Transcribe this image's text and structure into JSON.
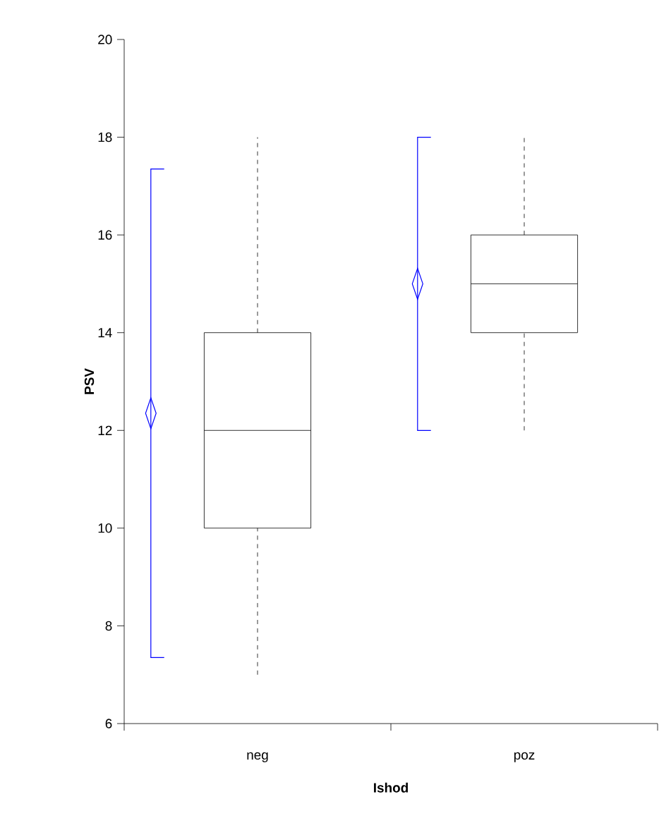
{
  "chart_data": {
    "type": "box",
    "xlabel": "**Ishod**",
    "ylabel": "**PSV**",
    "categories": [
      "neg",
      "poz"
    ],
    "boxes": [
      {
        "low": 7,
        "q1": 10,
        "median": 12,
        "q3": 14,
        "high": 18
      },
      {
        "low": 12,
        "q1": 14,
        "median": 15,
        "q3": 16,
        "high": 18
      }
    ],
    "series": [
      {
        "type": "scatter",
        "x": [
          "neg",
          "poz"
        ],
        "values": [
          12.35,
          15
        ],
        "errors": [
          [
            7.35,
            17.35
          ],
          [
            12,
            18
          ]
        ],
        "color": "#0000ff",
        "marker": "diamond"
      }
    ],
    "ylim": [
      6,
      20
    ],
    "yticks": [
      6,
      8,
      10,
      12,
      14,
      16,
      18,
      20
    ]
  }
}
